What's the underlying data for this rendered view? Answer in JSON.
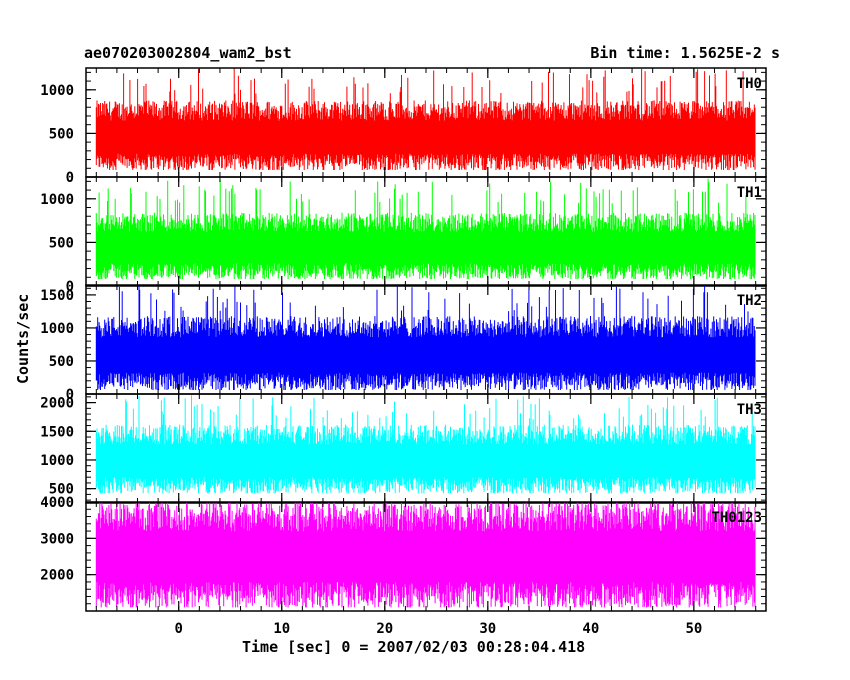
{
  "title_left": "ae070203002804_wam2_bst",
  "title_right": "Bin time: 1.5625E-2 s",
  "xlabel": "Time [sec] 0 = 2007/02/03 00:28:04.418",
  "ylabel": "Counts/sec",
  "chart_data": {
    "type": "line",
    "title": "ae070203002804_wam2_bst",
    "subtitle": "Bin time: 1.5625E-2 s",
    "xlabel": "Time [sec] 0 = 2007/02/03 00:28:04.418",
    "ylabel": "Counts/sec",
    "xlim": [
      -9,
      57
    ],
    "x_ticks": [
      0,
      10,
      20,
      30,
      40,
      50
    ],
    "x_data_range": [
      -8,
      56
    ],
    "bin_time": 0.015625,
    "panels": [
      {
        "name": "TH0",
        "color": "#ff0000",
        "ylim": [
          0,
          1250
        ],
        "y_ticks": [
          0,
          500,
          1000
        ],
        "baseline": 80,
        "mean": 500,
        "peak": 1250
      },
      {
        "name": "TH1",
        "color": "#00ff00",
        "ylim": [
          0,
          1250
        ],
        "y_ticks": [
          0,
          500,
          1000
        ],
        "baseline": 80,
        "mean": 480,
        "peak": 1250
      },
      {
        "name": "TH2",
        "color": "#0000ff",
        "ylim": [
          0,
          1650
        ],
        "y_ticks": [
          0,
          500,
          1000,
          1500
        ],
        "baseline": 60,
        "mean": 650,
        "peak": 1650
      },
      {
        "name": "TH3",
        "color": "#00ffff",
        "ylim": [
          250,
          2150
        ],
        "y_ticks": [
          500,
          1000,
          1500,
          2000
        ],
        "baseline": 420,
        "mean": 1050,
        "peak": 2150
      },
      {
        "name": "TH0123",
        "color": "#ff00ff",
        "ylim": [
          1000,
          4000
        ],
        "y_ticks": [
          2000,
          3000,
          4000
        ],
        "baseline": 1100,
        "mean": 2650,
        "peak": 4000
      }
    ]
  }
}
